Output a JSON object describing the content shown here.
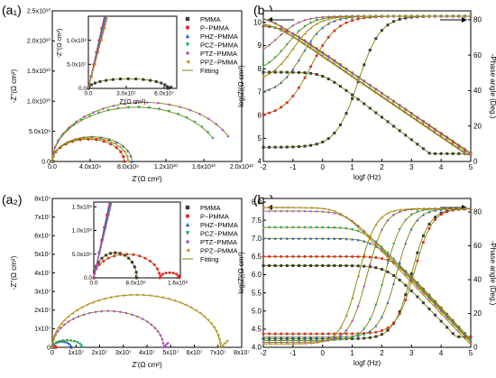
{
  "figure": {
    "panel_labels": [
      "(a₁)",
      "(b₁)",
      "(a₂)",
      "(b₂)"
    ],
    "legend": {
      "entries": [
        "PMMA",
        "P−PMMA",
        "PHZ−PMMA",
        "PCZ−PMMA",
        "PTZ−PMMA",
        "PPZ−PMMA",
        "Fitting"
      ]
    },
    "series_colors": {
      "PMMA": "#3a3a3a",
      "P-PMMA": "#e8262a",
      "PHZ-PMMA": "#1f62d6",
      "PCZ-PMMA": "#13a96a",
      "PTZ-PMMA": "#b548d8",
      "PPZ-PMMA": "#c9921a",
      "Fitting": "#808000"
    },
    "series_markers": {
      "PMMA": "square",
      "P-PMMA": "circle",
      "PHZ-PMMA": "triangle-up",
      "PCZ-PMMA": "triangle-down",
      "PTZ-PMMA": "diamond",
      "PPZ-PMMA": "triangle-left"
    }
  },
  "chart_data": [
    {
      "id": "a1",
      "type": "scatter",
      "panel_label": "(a₁)",
      "xlabel": "Z'(Ω cm²)",
      "ylabel": "-Z''(Ω cm²)",
      "xlim": [
        0,
        20000000000.0
      ],
      "ylim": [
        0,
        25000000000.0
      ],
      "xticks": [
        0,
        4000000000.0,
        8000000000.0,
        12000000000.0,
        16000000000.0,
        20000000000.0
      ],
      "xtick_labels": [
        "0.0",
        "4.0x10⁹",
        "8.0x10⁹",
        "1.2x10¹⁰",
        "1.6x10¹⁰",
        "2.0x10¹⁰"
      ],
      "yticks": [
        0,
        5000000000.0,
        10000000000.0,
        15000000000.0,
        20000000000.0,
        25000000000.0
      ],
      "ytick_labels": [
        "0.0",
        "5.0x10⁹",
        "1.0x10¹⁰",
        "1.5x10¹⁰",
        "2.0x10¹⁰",
        "2.5x10¹⁰"
      ],
      "series": [
        {
          "name": "PMMA",
          "kind": "arc",
          "r0": 0,
          "r1": 70000000.0,
          "h": 20000000.0,
          "n": 6
        },
        {
          "name": "P-PMMA",
          "kind": "arc",
          "r0": 0,
          "r1": 7600000000.0,
          "h": 3700000000.0,
          "n": 14
        },
        {
          "name": "PHZ-PMMA",
          "kind": "arc",
          "r0": 0,
          "r1": 8400000000.0,
          "h": 4100000000.0,
          "n": 14
        },
        {
          "name": "PCZ-PMMA",
          "kind": "arc",
          "r0": 0,
          "r1": 17800000000.0,
          "h": 9000000000.0,
          "n": 22,
          "end_frac": 0.86
        },
        {
          "name": "PTZ-PMMA",
          "kind": "arc",
          "r0": 0,
          "r1": 19500000000.0,
          "h": 9800000000.0,
          "n": 22,
          "end_frac": 0.86
        },
        {
          "name": "PPZ-PMMA",
          "kind": "arc",
          "r0": 0,
          "r1": 8000000000.0,
          "h": 3900000000.0,
          "n": 14
        }
      ],
      "inset": {
        "xlim": [
          0,
          70000000.0
        ],
        "ylim": [
          0,
          150000000.0
        ],
        "xticks": [
          0,
          30000000.0,
          60000000.0
        ],
        "xtick_labels": [
          "0.0",
          "3.0x10⁷",
          "6.0x10⁷"
        ],
        "yticks": [
          0,
          50000000.0,
          100000000.0
        ],
        "ytick_labels": [
          "0.0",
          "5.0x10⁷",
          "1.0x10⁸"
        ],
        "xlabel": "Z'(Ω cm²)",
        "ylabel": "-Z''(Ω cm²)",
        "series": [
          {
            "name": "PMMA",
            "kind": "arc",
            "r0": 0,
            "r1": 63000000.0,
            "h": 20000000.0,
            "n": 16,
            "tail": true
          },
          {
            "name": "others",
            "kind": "lines",
            "slopes": [
              3.9,
              4.05,
              4.2,
              4.35,
              4.5
            ]
          }
        ]
      }
    },
    {
      "id": "b1",
      "type": "line",
      "panel_label": "(b₁)",
      "xlabel": "logf (Hz)",
      "ylabel": "log|Z|(Ω cm²)",
      "y2label": "-Phase angle (Deg.)",
      "xlim": [
        -2,
        5
      ],
      "ylim": [
        4,
        10.5
      ],
      "y2lim": [
        0,
        85
      ],
      "xticks": [
        -2,
        -1,
        0,
        1,
        2,
        3,
        4,
        5
      ],
      "yticks": [
        4,
        5,
        6,
        7,
        8,
        9,
        10
      ],
      "y2ticks": [
        0,
        20,
        40,
        60,
        80
      ],
      "series": [
        {
          "name": "PMMA",
          "modZ": {
            "low": 7.85,
            "bp": 0.0,
            "slope": 0.97,
            "end": 4.35
          },
          "phase": {
            "low": 8,
            "high": 82,
            "mid": 1.2,
            "w": 0.38
          }
        },
        {
          "name": "P-PMMA",
          "modZ": {
            "low": 9.85,
            "bp": -1.3,
            "slope": 0.88,
            "end": 4.3
          },
          "phase": {
            "low": 25,
            "high": 82,
            "mid": -0.4,
            "w": 0.45
          }
        },
        {
          "name": "PHZ-PMMA",
          "modZ": {
            "low": 9.95,
            "bp": -1.6,
            "slope": 0.87,
            "end": 4.3
          },
          "phase": {
            "low": 38,
            "high": 82,
            "mid": -0.7,
            "w": 0.4
          }
        },
        {
          "name": "PCZ-PMMA",
          "modZ": {
            "low": 10.25,
            "bp": -1.85,
            "slope": 0.86,
            "end": 4.3
          },
          "phase": {
            "low": 50,
            "high": 82,
            "mid": -1.2,
            "w": 0.4
          }
        },
        {
          "name": "PTZ-PMMA",
          "modZ": {
            "low": 10.3,
            "bp": -1.9,
            "slope": 0.86,
            "end": 4.3
          },
          "phase": {
            "low": 58,
            "high": 82,
            "mid": -1.5,
            "w": 0.4
          }
        },
        {
          "name": "PPZ-PMMA",
          "modZ": {
            "low": 10.0,
            "bp": -1.7,
            "slope": 0.87,
            "end": 4.3
          },
          "phase": {
            "low": 45,
            "high": 82,
            "mid": -1.0,
            "w": 0.4
          }
        }
      ]
    },
    {
      "id": "a2",
      "type": "scatter",
      "panel_label": "(a₂)",
      "xlabel": "Z'(Ω cm²)",
      "ylabel": "-Z''(Ω cm²)",
      "xlim": [
        0,
        80000000.0
      ],
      "ylim": [
        0,
        80000000.0
      ],
      "xticks": [
        0,
        10000000.0,
        20000000.0,
        30000000.0,
        40000000.0,
        50000000.0,
        60000000.0,
        70000000.0,
        80000000.0
      ],
      "xtick_labels": [
        "0",
        "1x10⁷",
        "2x10⁷",
        "3x10⁷",
        "4x10⁷",
        "5x10⁷",
        "6x10⁷",
        "7x10⁷",
        "8x10⁷"
      ],
      "yticks": [
        0,
        10000000.0,
        20000000.0,
        30000000.0,
        40000000.0,
        50000000.0,
        60000000.0,
        70000000.0,
        80000000.0
      ],
      "ytick_labels": [
        "0",
        "1x10⁷",
        "2x10⁷",
        "3x10⁷",
        "4x10⁷",
        "5x10⁷",
        "6x10⁷",
        "7x10⁷",
        "8x10⁷"
      ],
      "series": [
        {
          "name": "PMMA",
          "kind": "arc",
          "r0": 0,
          "r1": 1200000.0,
          "h": 500000.0,
          "n": 4
        },
        {
          "name": "P-PMMA",
          "kind": "arc",
          "r0": 0,
          "r1": 1600000.0,
          "h": 600000.0,
          "n": 4
        },
        {
          "name": "PHZ-PMMA",
          "kind": "arc",
          "r0": 0,
          "r1": 8000000.0,
          "h": 3200000.0,
          "n": 10
        },
        {
          "name": "PCZ-PMMA",
          "kind": "arc",
          "r0": 0,
          "r1": 12500000.0,
          "h": 3600000.0,
          "n": 12
        },
        {
          "name": "PTZ-PMMA",
          "kind": "arc",
          "r0": 0,
          "r1": 47000000.0,
          "h": 19500000.0,
          "n": 28,
          "tail": true
        },
        {
          "name": "PPZ-PMMA",
          "kind": "arc",
          "r0": 0,
          "r1": 71000000.0,
          "h": 28200000.0,
          "n": 40,
          "tail": true
        }
      ],
      "inset": {
        "xlim": [
          0,
          1650000.0
        ],
        "ylim": [
          0,
          1600000.0
        ],
        "xticks": [
          0,
          800000.0,
          1600000.0
        ],
        "xtick_labels": [
          "0.0",
          "8.0x10⁵",
          "1.6x10⁶"
        ],
        "yticks": [
          0,
          500000.0,
          1000000.0,
          1500000.0
        ],
        "ytick_labels": [
          "0.0",
          "5.0x10⁵",
          "1.0x10⁶",
          "1.5x10⁶"
        ],
        "series": [
          {
            "name": "PMMA",
            "kind": "arc",
            "r0": 0,
            "r1": 820000.0,
            "h": 530000.0,
            "n": 14
          },
          {
            "name": "P-PMMA",
            "kind": "arc",
            "r0": 0,
            "r1": 1260000.0,
            "h": 500000.0,
            "n": 16,
            "second": {
              "r0": 1260000.0,
              "r1": 1630000.0,
              "h": 110000.0
            }
          },
          {
            "name": "others",
            "kind": "lines",
            "slopes": [
              1.6,
              2.4,
              3.3,
              4.8
            ]
          }
        ]
      }
    },
    {
      "id": "b2",
      "type": "line",
      "panel_label": "(b₂)",
      "xlabel": "logf (Hz)",
      "ylabel": "log|Z|(Ω cm²)",
      "y2label": "-Phase angle (Deg.)",
      "xlim": [
        -2,
        5
      ],
      "ylim": [
        4.0,
        8.1
      ],
      "y2lim": [
        0,
        88
      ],
      "xticks": [
        -2,
        -1,
        0,
        1,
        2,
        3,
        4,
        5
      ],
      "yticks": [
        4.0,
        4.5,
        5.0,
        5.5,
        6.0,
        6.5,
        7.0,
        7.5,
        8.0
      ],
      "y2ticks": [
        0,
        20,
        40,
        60,
        80
      ],
      "series": [
        {
          "name": "PMMA",
          "modZ": {
            "low": 6.25,
            "bp": 2.2,
            "slope": 0.85,
            "end": 4.3
          },
          "phase": {
            "low": 5,
            "high": 82,
            "mid": 3.0,
            "w": 0.3
          }
        },
        {
          "name": "P-PMMA",
          "modZ": {
            "low": 6.5,
            "bp": 2.4,
            "slope": 0.88,
            "end": 4.3
          },
          "phase": {
            "low": 8,
            "high": 82,
            "mid": 3.1,
            "w": 0.3
          }
        },
        {
          "name": "PHZ-PMMA",
          "modZ": {
            "low": 7.0,
            "bp": 1.7,
            "slope": 0.86,
            "end": 4.2
          },
          "phase": {
            "low": 6,
            "high": 82,
            "mid": 2.5,
            "w": 0.3
          }
        },
        {
          "name": "PCZ-PMMA",
          "modZ": {
            "low": 7.3,
            "bp": 1.4,
            "slope": 0.86,
            "end": 4.2
          },
          "phase": {
            "low": 4,
            "high": 82,
            "mid": 2.1,
            "w": 0.3
          }
        },
        {
          "name": "PTZ-PMMA",
          "modZ": {
            "low": 7.75,
            "bp": 0.8,
            "slope": 0.86,
            "end": 4.15
          },
          "phase": {
            "low": 3,
            "high": 82,
            "mid": 1.5,
            "w": 0.3
          }
        },
        {
          "name": "PPZ-PMMA",
          "modZ": {
            "low": 7.85,
            "bp": 0.6,
            "slope": 0.86,
            "end": 4.1
          },
          "phase": {
            "low": 2,
            "high": 82,
            "mid": 1.2,
            "w": 0.3
          }
        }
      ]
    }
  ]
}
